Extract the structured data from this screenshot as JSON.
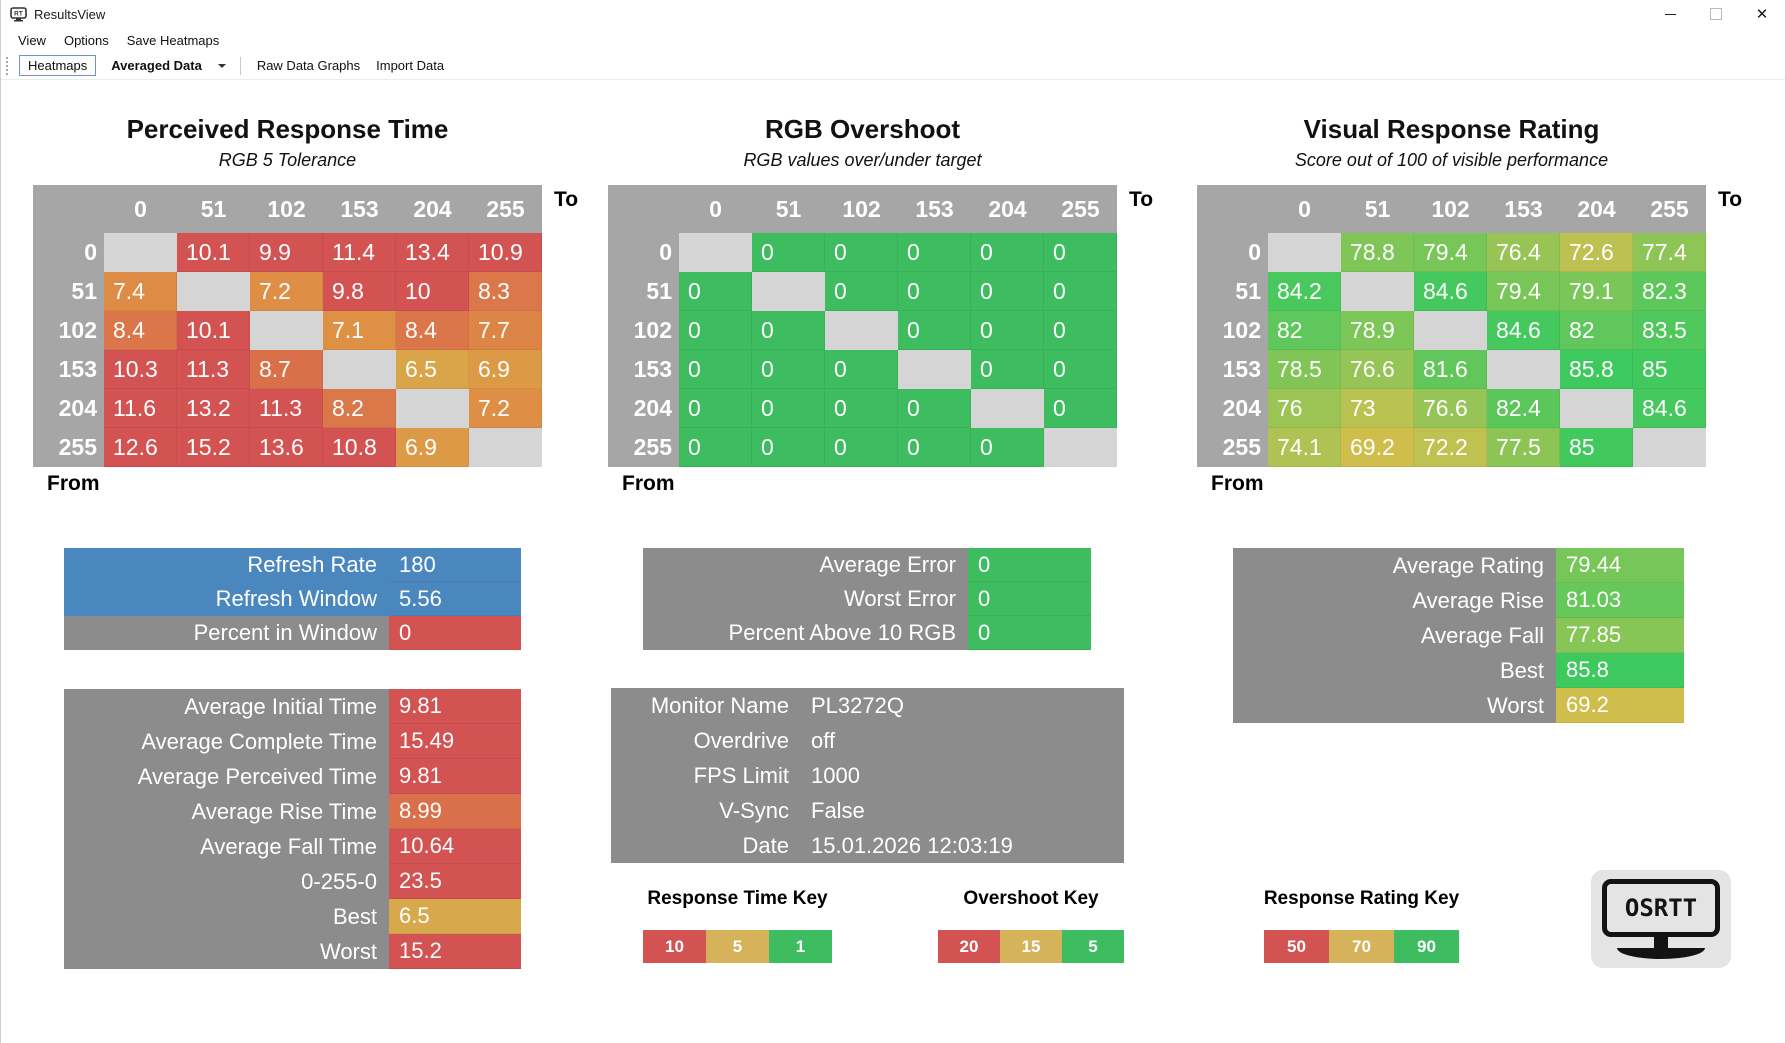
{
  "window": {
    "title": "ResultsView",
    "controls": [
      {
        "name": "minimize"
      },
      {
        "name": "maximize"
      },
      {
        "name": "close",
        "glyph": "✕"
      }
    ]
  },
  "menu": {
    "items": [
      "View",
      "Options",
      "Save Heatmaps"
    ]
  },
  "toolbar": {
    "heatmaps_label": "Heatmaps",
    "dataset_value": "Averaged Data",
    "raw_data_label": "Raw Data Graphs",
    "import_label": "Import Data"
  },
  "axis": {
    "from": "From",
    "to": "To",
    "levels": [
      "0",
      "51",
      "102",
      "153",
      "204",
      "255"
    ]
  },
  "colors": {
    "red": "#D35252",
    "gold": "#D6B35A",
    "green": "#3EBC60",
    "blue": "#4A87BF",
    "panel_gray": "#8C8C8C",
    "header_gray": "#A6A6A6",
    "diagonal_gray": "#D5D5D5"
  },
  "chart_data": [
    {
      "type": "heatmap",
      "title": "Perceived Response Time",
      "subtitle": "RGB 5 Tolerance",
      "x": [
        0,
        51,
        102,
        153,
        204,
        255
      ],
      "y": [
        0,
        51,
        102,
        153,
        204,
        255
      ],
      "values": [
        [
          null,
          10.1,
          9.9,
          11.4,
          13.4,
          10.9
        ],
        [
          7.4,
          null,
          7.2,
          9.8,
          10,
          8.3
        ],
        [
          8.4,
          10.1,
          null,
          7.1,
          8.4,
          7.7
        ],
        [
          10.3,
          11.3,
          8.7,
          null,
          6.5,
          6.9
        ],
        [
          11.6,
          13.2,
          11.3,
          8.2,
          null,
          7.2
        ],
        [
          12.6,
          15.2,
          13.6,
          10.8,
          6.9,
          null
        ]
      ]
    },
    {
      "type": "heatmap",
      "title": "RGB Overshoot",
      "subtitle": "RGB values over/under target",
      "x": [
        0,
        51,
        102,
        153,
        204,
        255
      ],
      "y": [
        0,
        51,
        102,
        153,
        204,
        255
      ],
      "values": [
        [
          null,
          0,
          0,
          0,
          0,
          0
        ],
        [
          0,
          null,
          0,
          0,
          0,
          0
        ],
        [
          0,
          0,
          null,
          0,
          0,
          0
        ],
        [
          0,
          0,
          0,
          null,
          0,
          0
        ],
        [
          0,
          0,
          0,
          0,
          null,
          0
        ],
        [
          0,
          0,
          0,
          0,
          0,
          null
        ]
      ]
    },
    {
      "type": "heatmap",
      "title": "Visual Response Rating",
      "subtitle": "Score out of 100 of visible performance",
      "x": [
        0,
        51,
        102,
        153,
        204,
        255
      ],
      "y": [
        0,
        51,
        102,
        153,
        204,
        255
      ],
      "values": [
        [
          null,
          78.8,
          79.4,
          76.4,
          72.6,
          77.4
        ],
        [
          84.2,
          null,
          84.6,
          79.4,
          79.1,
          82.3
        ],
        [
          82,
          78.9,
          null,
          84.6,
          82,
          83.5
        ],
        [
          78.5,
          76.6,
          81.6,
          null,
          85.8,
          85
        ],
        [
          76,
          73,
          76.6,
          82.4,
          null,
          84.6
        ],
        [
          74.1,
          69.2,
          72.2,
          77.5,
          85,
          null
        ]
      ]
    }
  ],
  "heatmaps": [
    {
      "title": "Perceived Response Time",
      "subtitle": "RGB 5 Tolerance",
      "rows": [
        [
          null,
          {
            "v": "10.1",
            "c": "#D35252"
          },
          {
            "v": "9.9",
            "c": "#D35252"
          },
          {
            "v": "11.4",
            "c": "#D35252"
          },
          {
            "v": "13.4",
            "c": "#D35252"
          },
          {
            "v": "10.9",
            "c": "#D35252"
          }
        ],
        [
          {
            "v": "7.4",
            "c": "#DE8B46"
          },
          null,
          {
            "v": "7.2",
            "c": "#DE8F45"
          },
          {
            "v": "9.8",
            "c": "#D35252"
          },
          {
            "v": "10",
            "c": "#D35252"
          },
          {
            "v": "8.3",
            "c": "#DB774A"
          }
        ],
        [
          {
            "v": "8.4",
            "c": "#DB764A"
          },
          {
            "v": "10.1",
            "c": "#D35252"
          },
          null,
          {
            "v": "7.1",
            "c": "#DE9145"
          },
          {
            "v": "8.4",
            "c": "#DB764A"
          },
          {
            "v": "7.7",
            "c": "#DD8447"
          }
        ],
        [
          {
            "v": "10.3",
            "c": "#D35252"
          },
          {
            "v": "11.3",
            "c": "#D35252"
          },
          {
            "v": "8.7",
            "c": "#DA7049"
          },
          null,
          {
            "v": "6.5",
            "c": "#D9A548"
          },
          {
            "v": "6.9",
            "c": "#DC9A46"
          }
        ],
        [
          {
            "v": "11.6",
            "c": "#D35252"
          },
          {
            "v": "13.2",
            "c": "#D35252"
          },
          {
            "v": "11.3",
            "c": "#D35252"
          },
          {
            "v": "8.2",
            "c": "#DB784A"
          },
          null,
          {
            "v": "7.2",
            "c": "#DE8F45"
          }
        ],
        [
          {
            "v": "12.6",
            "c": "#D35252"
          },
          {
            "v": "15.2",
            "c": "#D35252"
          },
          {
            "v": "13.6",
            "c": "#D35252"
          },
          {
            "v": "10.8",
            "c": "#D35252"
          },
          {
            "v": "6.9",
            "c": "#DC9A46"
          },
          null
        ]
      ]
    },
    {
      "title": "RGB Overshoot",
      "subtitle": "RGB values over/under target",
      "rows": [
        [
          null,
          {
            "v": "0",
            "c": "#3EBC60"
          },
          {
            "v": "0",
            "c": "#3EBC60"
          },
          {
            "v": "0",
            "c": "#3EBC60"
          },
          {
            "v": "0",
            "c": "#3EBC60"
          },
          {
            "v": "0",
            "c": "#3EBC60"
          }
        ],
        [
          {
            "v": "0",
            "c": "#3EBC60"
          },
          null,
          {
            "v": "0",
            "c": "#3EBC60"
          },
          {
            "v": "0",
            "c": "#3EBC60"
          },
          {
            "v": "0",
            "c": "#3EBC60"
          },
          {
            "v": "0",
            "c": "#3EBC60"
          }
        ],
        [
          {
            "v": "0",
            "c": "#3EBC60"
          },
          {
            "v": "0",
            "c": "#3EBC60"
          },
          null,
          {
            "v": "0",
            "c": "#3EBC60"
          },
          {
            "v": "0",
            "c": "#3EBC60"
          },
          {
            "v": "0",
            "c": "#3EBC60"
          }
        ],
        [
          {
            "v": "0",
            "c": "#3EBC60"
          },
          {
            "v": "0",
            "c": "#3EBC60"
          },
          {
            "v": "0",
            "c": "#3EBC60"
          },
          null,
          {
            "v": "0",
            "c": "#3EBC60"
          },
          {
            "v": "0",
            "c": "#3EBC60"
          }
        ],
        [
          {
            "v": "0",
            "c": "#3EBC60"
          },
          {
            "v": "0",
            "c": "#3EBC60"
          },
          {
            "v": "0",
            "c": "#3EBC60"
          },
          {
            "v": "0",
            "c": "#3EBC60"
          },
          null,
          {
            "v": "0",
            "c": "#3EBC60"
          }
        ],
        [
          {
            "v": "0",
            "c": "#3EBC60"
          },
          {
            "v": "0",
            "c": "#3EBC60"
          },
          {
            "v": "0",
            "c": "#3EBC60"
          },
          {
            "v": "0",
            "c": "#3EBC60"
          },
          {
            "v": "0",
            "c": "#3EBC60"
          },
          null
        ]
      ]
    },
    {
      "title": "Visual Response Rating",
      "subtitle": "Score out of 100 of visible performance",
      "rows": [
        [
          null,
          {
            "v": "78.8",
            "c": "#7EC658"
          },
          {
            "v": "79.4",
            "c": "#78C658"
          },
          {
            "v": "76.4",
            "c": "#98C455"
          },
          {
            "v": "72.6",
            "c": "#BDC151"
          },
          {
            "v": "77.4",
            "c": "#8DC556"
          }
        ],
        [
          {
            "v": "84.2",
            "c": "#49C85D"
          },
          null,
          {
            "v": "84.6",
            "c": "#45C85D"
          },
          {
            "v": "79.4",
            "c": "#78C658"
          },
          {
            "v": "79.1",
            "c": "#7BC658"
          },
          {
            "v": "82.3",
            "c": "#5CC75B"
          }
        ],
        [
          {
            "v": "82",
            "c": "#5FC75B"
          },
          {
            "v": "78.9",
            "c": "#7DC658"
          },
          null,
          {
            "v": "84.6",
            "c": "#45C85D"
          },
          {
            "v": "82",
            "c": "#5FC75B"
          },
          {
            "v": "83.5",
            "c": "#50C85C"
          }
        ],
        [
          {
            "v": "78.5",
            "c": "#81C557"
          },
          {
            "v": "76.6",
            "c": "#96C456"
          },
          {
            "v": "81.6",
            "c": "#62C75A"
          },
          null,
          {
            "v": "85.8",
            "c": "#3DC95E"
          },
          {
            "v": "85",
            "c": "#41C95E"
          }
        ],
        [
          {
            "v": "76",
            "c": "#9CC455"
          },
          {
            "v": "73",
            "c": "#BAC251"
          },
          {
            "v": "76.6",
            "c": "#96C456"
          },
          {
            "v": "82.4",
            "c": "#5BC75B"
          },
          null,
          {
            "v": "84.6",
            "c": "#45C85D"
          }
        ],
        [
          {
            "v": "74.1",
            "c": "#AFC253"
          },
          {
            "v": "69.2",
            "c": "#CFBD4C"
          },
          {
            "v": "72.2",
            "c": "#BFC150"
          },
          {
            "v": "77.5",
            "c": "#8CC556"
          },
          {
            "v": "85",
            "c": "#41C95E"
          },
          null
        ]
      ]
    }
  ],
  "panels": {
    "refresh": {
      "rows": [
        {
          "label": "Refresh Rate",
          "value": "180",
          "lbg": "#4A87BF",
          "vbg": "#4A87BF"
        },
        {
          "label": "Refresh Window",
          "value": "5.56",
          "lbg": "#4A87BF",
          "vbg": "#4A87BF"
        },
        {
          "label": "Percent in Window",
          "value": "0",
          "vbg": "#D35252"
        }
      ]
    },
    "times": {
      "rows": [
        {
          "label": "Average Initial Time",
          "value": "9.81",
          "vbg": "#D35252"
        },
        {
          "label": "Average Complete Time",
          "value": "15.49",
          "vbg": "#D35252"
        },
        {
          "label": "Average Perceived Time",
          "value": "9.81",
          "vbg": "#D35252"
        },
        {
          "label": "Average Rise Time",
          "value": "8.99",
          "vbg": "#DA6F4B"
        },
        {
          "label": "Average Fall Time",
          "value": "10.64",
          "vbg": "#D35252"
        },
        {
          "label": "0-255-0",
          "value": "23.5",
          "vbg": "#D35252"
        },
        {
          "label": "Best",
          "value": "6.5",
          "vbg": "#D8A94C"
        },
        {
          "label": "Worst",
          "value": "15.2",
          "vbg": "#D35252"
        }
      ]
    },
    "errors": {
      "rows": [
        {
          "label": "Average Error",
          "value": "0",
          "vbg": "#3EBC60"
        },
        {
          "label": "Worst Error",
          "value": "0",
          "vbg": "#3EBC60"
        },
        {
          "label": "Percent Above 10 RGB",
          "value": "0",
          "vbg": "#3EBC60"
        }
      ]
    },
    "monitor": {
      "rows": [
        {
          "label": "Monitor Name",
          "value": "PL3272Q"
        },
        {
          "label": "Overdrive",
          "value": "off"
        },
        {
          "label": "FPS Limit",
          "value": "1000"
        },
        {
          "label": "V-Sync",
          "value": "False"
        },
        {
          "label": "Date",
          "value": "15.01.2026 12:03:19"
        }
      ]
    },
    "ratings": {
      "rows": [
        {
          "label": "Average Rating",
          "value": "79.44",
          "vbg": "#76C659"
        },
        {
          "label": "Average Rise",
          "value": "81.03",
          "vbg": "#66C75A"
        },
        {
          "label": "Average Fall",
          "value": "77.85",
          "vbg": "#88C557"
        },
        {
          "label": "Best",
          "value": "85.8",
          "vbg": "#3DC95E"
        },
        {
          "label": "Worst",
          "value": "69.2",
          "vbg": "#CFBD4C"
        }
      ]
    }
  },
  "keys": [
    {
      "title": "Response Time Key",
      "cells": [
        {
          "v": "10",
          "c": "#D35252"
        },
        {
          "v": "5",
          "c": "#D6B35A"
        },
        {
          "v": "1",
          "c": "#3EBC60"
        }
      ]
    },
    {
      "title": "Overshoot Key",
      "cells": [
        {
          "v": "20",
          "c": "#D35252"
        },
        {
          "v": "15",
          "c": "#D6B35A"
        },
        {
          "v": "5",
          "c": "#3EBC60"
        }
      ]
    },
    {
      "title": "Response Rating Key",
      "cells": [
        {
          "v": "50",
          "c": "#D35252"
        },
        {
          "v": "70",
          "c": "#D6B35A"
        },
        {
          "v": "90",
          "c": "#3EBC60"
        }
      ]
    }
  ],
  "logo": {
    "text": "OSRTT"
  }
}
